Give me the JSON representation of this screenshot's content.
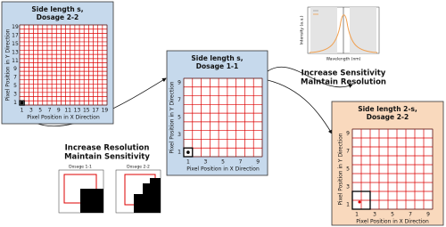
{
  "panels": [
    {
      "title_line1": "Side length s,",
      "title_line2": "Dosage 2-2",
      "y_label": "Pixel Position in Y Direction",
      "x_label": "Pixel Position in X Direction",
      "x_ticks": [
        "1",
        "3",
        "5",
        "7",
        "9",
        "11",
        "13",
        "15",
        "17",
        "19"
      ],
      "y_ticks": [
        "1",
        "3",
        "5",
        "7",
        "9",
        "11",
        "13",
        "15",
        "17",
        "19"
      ]
    },
    {
      "title_line1": "Side length s,",
      "title_line2": "Dosage 1-1",
      "y_label": "Pixel Position in Y Direction",
      "x_label": "Pixel Position in X Direction",
      "x_ticks": [
        "1",
        "3",
        "5",
        "7",
        "9"
      ],
      "y_ticks": [
        "1",
        "3",
        "5",
        "7",
        "9"
      ]
    },
    {
      "title_line1": "Side length 2-s,",
      "title_line2": "Dosage 2-2",
      "y_label": "Pixel Position in Y Direction",
      "x_label": "Pixel Position in X Direction",
      "x_ticks": [
        "1",
        "3",
        "5",
        "7",
        "9"
      ],
      "y_ticks": [
        "1",
        "3",
        "5",
        "7",
        "9"
      ]
    }
  ],
  "captions": {
    "resolution_line1": "Increase Resolution",
    "resolution_line2": "Maintain Sensitivity",
    "sensitivity_line1": "Increase Sensitivity",
    "sensitivity_line2": "Maintain Resolution"
  },
  "small_plots": {
    "left_title": "Dosage 1-1",
    "right_title": "Dosage 2-2"
  },
  "spectrum": {
    "x_label": "Wavelength (nm)",
    "y_label": "Intensity (a.u.)"
  }
}
